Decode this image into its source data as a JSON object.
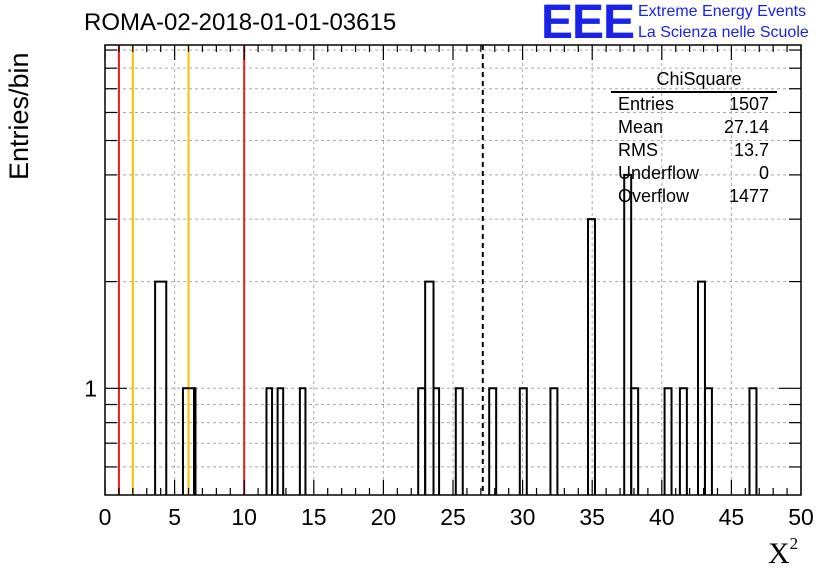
{
  "header": {
    "title": "ROMA-02-2018-01-01-03615"
  },
  "logo": {
    "mark": "EEE",
    "line1": "Extreme Energy Events",
    "line2": "La Scienza nelle Scuole",
    "color": "#1a22e8"
  },
  "stats_box": {
    "name": "ChiSquare",
    "rows": [
      {
        "label": "Entries",
        "value": "1507"
      },
      {
        "label": "Mean",
        "value": "27.14"
      },
      {
        "label": "RMS",
        "value": "13.7"
      },
      {
        "label": "Underflow",
        "value": "0"
      },
      {
        "label": "Overflow",
        "value": "1477"
      }
    ]
  },
  "chart_data": {
    "type": "histogram",
    "title": "ROMA-02-2018-01-01-03615",
    "xlabel": "X",
    "xlabel_superscript": "2",
    "ylabel": "Entries/bin",
    "xlim": [
      0,
      50
    ],
    "ylim": [
      0.5,
      9.3
    ],
    "yscale": "log",
    "grid": true,
    "bin_width": 0.8,
    "bins": [
      {
        "x0": 3.6,
        "x1": 4.4,
        "count": 2
      },
      {
        "x0": 5.6,
        "x1": 6.4,
        "count": 1
      },
      {
        "x0": 6.4,
        "x1": 6.5,
        "count": 1
      },
      {
        "x0": 11.6,
        "x1": 12.0,
        "count": 1
      },
      {
        "x0": 12.4,
        "x1": 12.8,
        "count": 1
      },
      {
        "x0": 14.0,
        "x1": 14.4,
        "count": 1
      },
      {
        "x0": 22.5,
        "x1": 23.0,
        "count": 1
      },
      {
        "x0": 23.0,
        "x1": 23.6,
        "count": 2
      },
      {
        "x0": 23.6,
        "x1": 24.0,
        "count": 1
      },
      {
        "x0": 25.2,
        "x1": 25.7,
        "count": 1
      },
      {
        "x0": 27.6,
        "x1": 28.1,
        "count": 1
      },
      {
        "x0": 29.8,
        "x1": 30.3,
        "count": 1
      },
      {
        "x0": 32.0,
        "x1": 32.5,
        "count": 1
      },
      {
        "x0": 34.7,
        "x1": 35.2,
        "count": 3
      },
      {
        "x0": 37.3,
        "x1": 37.8,
        "count": 4
      },
      {
        "x0": 37.8,
        "x1": 38.3,
        "count": 1
      },
      {
        "x0": 40.2,
        "x1": 40.7,
        "count": 1
      },
      {
        "x0": 41.3,
        "x1": 41.8,
        "count": 1
      },
      {
        "x0": 42.6,
        "x1": 43.1,
        "count": 2
      },
      {
        "x0": 43.1,
        "x1": 43.6,
        "count": 1
      },
      {
        "x0": 46.3,
        "x1": 46.8,
        "count": 1
      }
    ],
    "x_ticks": [
      0,
      5,
      10,
      15,
      20,
      25,
      30,
      35,
      40,
      45,
      50
    ],
    "y_tick_labels": [
      {
        "value": 1,
        "label": "1"
      }
    ],
    "vertical_lines": [
      {
        "x": 1.0,
        "color": "#e0201c",
        "style": "solid"
      },
      {
        "x": 2.0,
        "color": "#f2c200",
        "style": "solid"
      },
      {
        "x": 6.0,
        "color": "#f2c200",
        "style": "solid"
      },
      {
        "x": 10.0,
        "color": "#e0201c",
        "style": "solid"
      },
      {
        "x": 27.14,
        "color": "#000000",
        "style": "dashed"
      }
    ]
  }
}
